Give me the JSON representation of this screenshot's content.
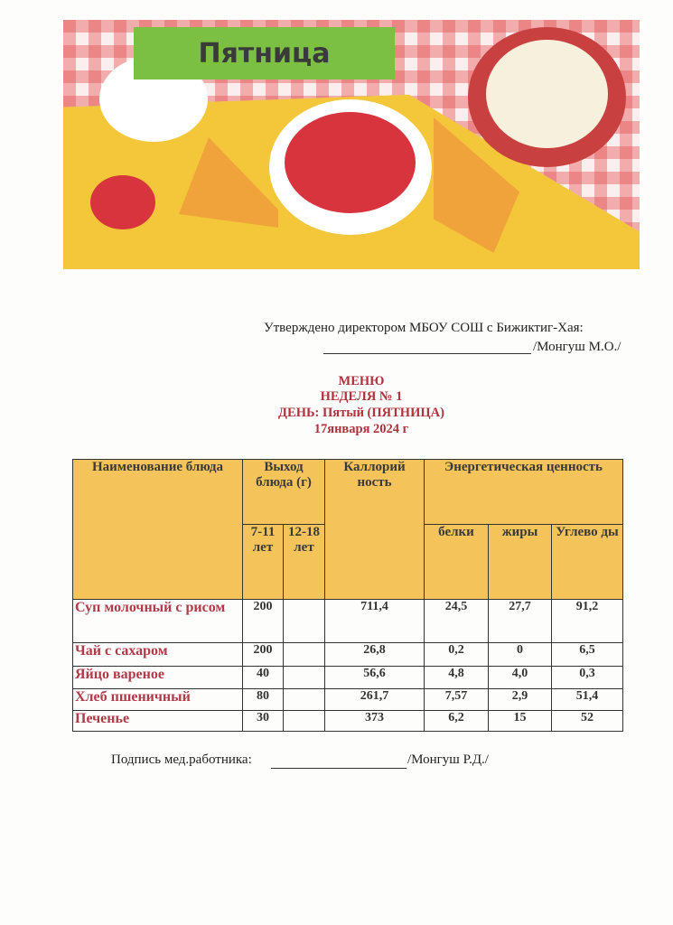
{
  "banner": {
    "title": "Пятница"
  },
  "approval": {
    "line1": "Утверждено  директором МБОУ СОШ с Бижиктиг-Хая:",
    "line2": "/Монгуш М.О./"
  },
  "heading": {
    "menu": "МЕНЮ",
    "week": "НЕДЕЛЯ № 1",
    "day": "ДЕНЬ: Пятый (ПЯТНИЦА)",
    "date": "17января  2024 г"
  },
  "table": {
    "headers": {
      "name": "Наименование блюда",
      "yield": "Выход блюда (г)",
      "calories": "Каллорий ность",
      "energy": "Энергетическая ценность",
      "age1": "7-11 лет",
      "age2": "12-18 лет",
      "protein": "белки",
      "fat": "жиры",
      "carbs": "Углево ды"
    },
    "rows": [
      {
        "name": "Суп молочный с рисом",
        "y1": "200",
        "y2": "",
        "cal": "711,4",
        "p": "24,5",
        "f": "27,7",
        "c": "91,2"
      },
      {
        "name": "Чай с сахаром",
        "y1": "200",
        "y2": "",
        "cal": "26,8",
        "p": "0,2",
        "f": "0",
        "c": "6,5"
      },
      {
        "name": "Яйцо вареное",
        "y1": "40",
        "y2": "",
        "cal": "56,6",
        "p": "4,8",
        "f": "4,0",
        "c": "0,3"
      },
      {
        "name": "Хлеб пшеничный",
        "y1": "80",
        "y2": "",
        "cal": "261,7",
        "p": "7,57",
        "f": "2,9",
        "c": "51,4"
      },
      {
        "name": "Печенье",
        "y1": "30",
        "y2": "",
        "cal": "373",
        "p": "6,2",
        "f": "15",
        "c": "52"
      }
    ]
  },
  "footer": {
    "label": "Подпись мед.работника:",
    "name": "/Монгуш Р.Д./"
  }
}
